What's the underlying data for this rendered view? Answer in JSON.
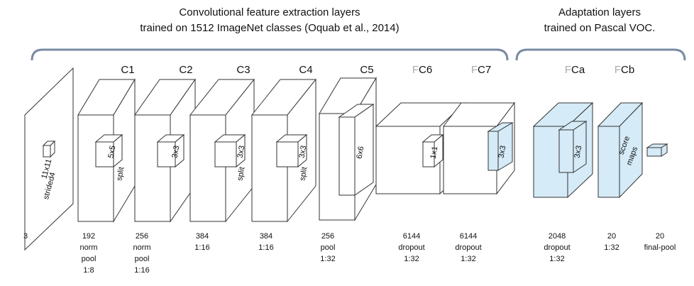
{
  "groups": [
    {
      "title_lines": [
        "Convolutional feature extraction layers",
        "trained on 1512 ImageNet classes (Oquab et al., 2014)"
      ]
    },
    {
      "title_lines": [
        "Adaptation layers",
        "trained on Pascal VOC."
      ]
    }
  ],
  "layers": [
    {
      "inner_labels": [
        "11x11",
        "strided4"
      ],
      "bottom_lines": [
        "3"
      ]
    },
    {
      "name": {
        "text": "C1"
      },
      "inner_labels": [
        "5x5",
        "split"
      ],
      "bottom_lines": [
        "192",
        "norm",
        "pool",
        "1:8"
      ]
    },
    {
      "name": {
        "text": "C2"
      },
      "inner_labels": [
        "3x3"
      ],
      "bottom_lines": [
        "256",
        "norm",
        "pool",
        "1:16"
      ]
    },
    {
      "name": {
        "text": "C3"
      },
      "inner_labels": [
        "3x3",
        "split"
      ],
      "bottom_lines": [
        "384",
        "1:16"
      ]
    },
    {
      "name": {
        "text": "C4"
      },
      "inner_labels": [
        "3x3",
        "split"
      ],
      "bottom_lines": [
        "384",
        "1:16"
      ]
    },
    {
      "name": {
        "text": "C5"
      },
      "inner_labels": [
        "6x6"
      ],
      "bottom_lines": [
        "256",
        "pool",
        "1:32"
      ]
    },
    {
      "name": {
        "faded": "F",
        "text": "C6"
      },
      "inner_labels": [
        "1x1"
      ],
      "bottom_lines": [
        "6144",
        "dropout",
        "1:32"
      ]
    },
    {
      "name": {
        "faded": "F",
        "text": "C7"
      },
      "inner_labels": [
        "3x3"
      ],
      "bottom_lines": [
        "6144",
        "dropout",
        "1:32"
      ]
    },
    {
      "name": {
        "faded": "F",
        "text": "Ca"
      },
      "inner_labels": [
        "3x3"
      ],
      "bottom_lines": [
        "2048",
        "dropout",
        "1:32"
      ]
    },
    {
      "name": {
        "faded": "F",
        "text": "Cb"
      },
      "inner_labels": [
        "score",
        "maps"
      ],
      "bottom_lines": [
        "20",
        "1:32"
      ]
    },
    {
      "bottom_lines": [
        "20",
        "final-pool"
      ]
    }
  ]
}
